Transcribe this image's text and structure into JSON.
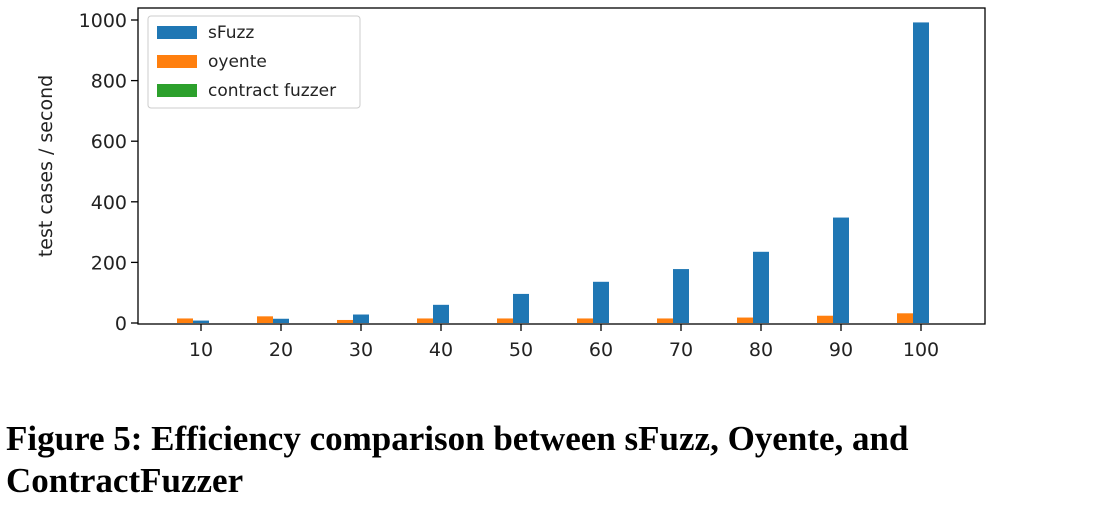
{
  "chart_data": {
    "type": "bar",
    "categories": [
      "10",
      "20",
      "30",
      "40",
      "50",
      "60",
      "70",
      "80",
      "90",
      "100"
    ],
    "series": [
      {
        "name": "sFuzz",
        "color": "#1f77b4",
        "values": [
          8,
          14,
          28,
          60,
          96,
          136,
          178,
          235,
          348,
          992
        ]
      },
      {
        "name": "oyente",
        "color": "#ff7f0e",
        "values": [
          15,
          22,
          10,
          15,
          15,
          15,
          15,
          18,
          24,
          32
        ]
      },
      {
        "name": "contract fuzzer",
        "color": "#2ca02c",
        "values": [
          0,
          0,
          0,
          0,
          0,
          0,
          0,
          0,
          0,
          0
        ]
      }
    ],
    "xlabel": "",
    "ylabel": "test cases / second",
    "ylim": [
      0,
      1000
    ],
    "yticks": [
      0,
      200,
      400,
      600,
      800,
      1000
    ],
    "grid": false,
    "legend_position": "top-left"
  },
  "caption": "Figure 5: Efficiency comparison between sFuzz, Oyente, and ContractFuzzer"
}
